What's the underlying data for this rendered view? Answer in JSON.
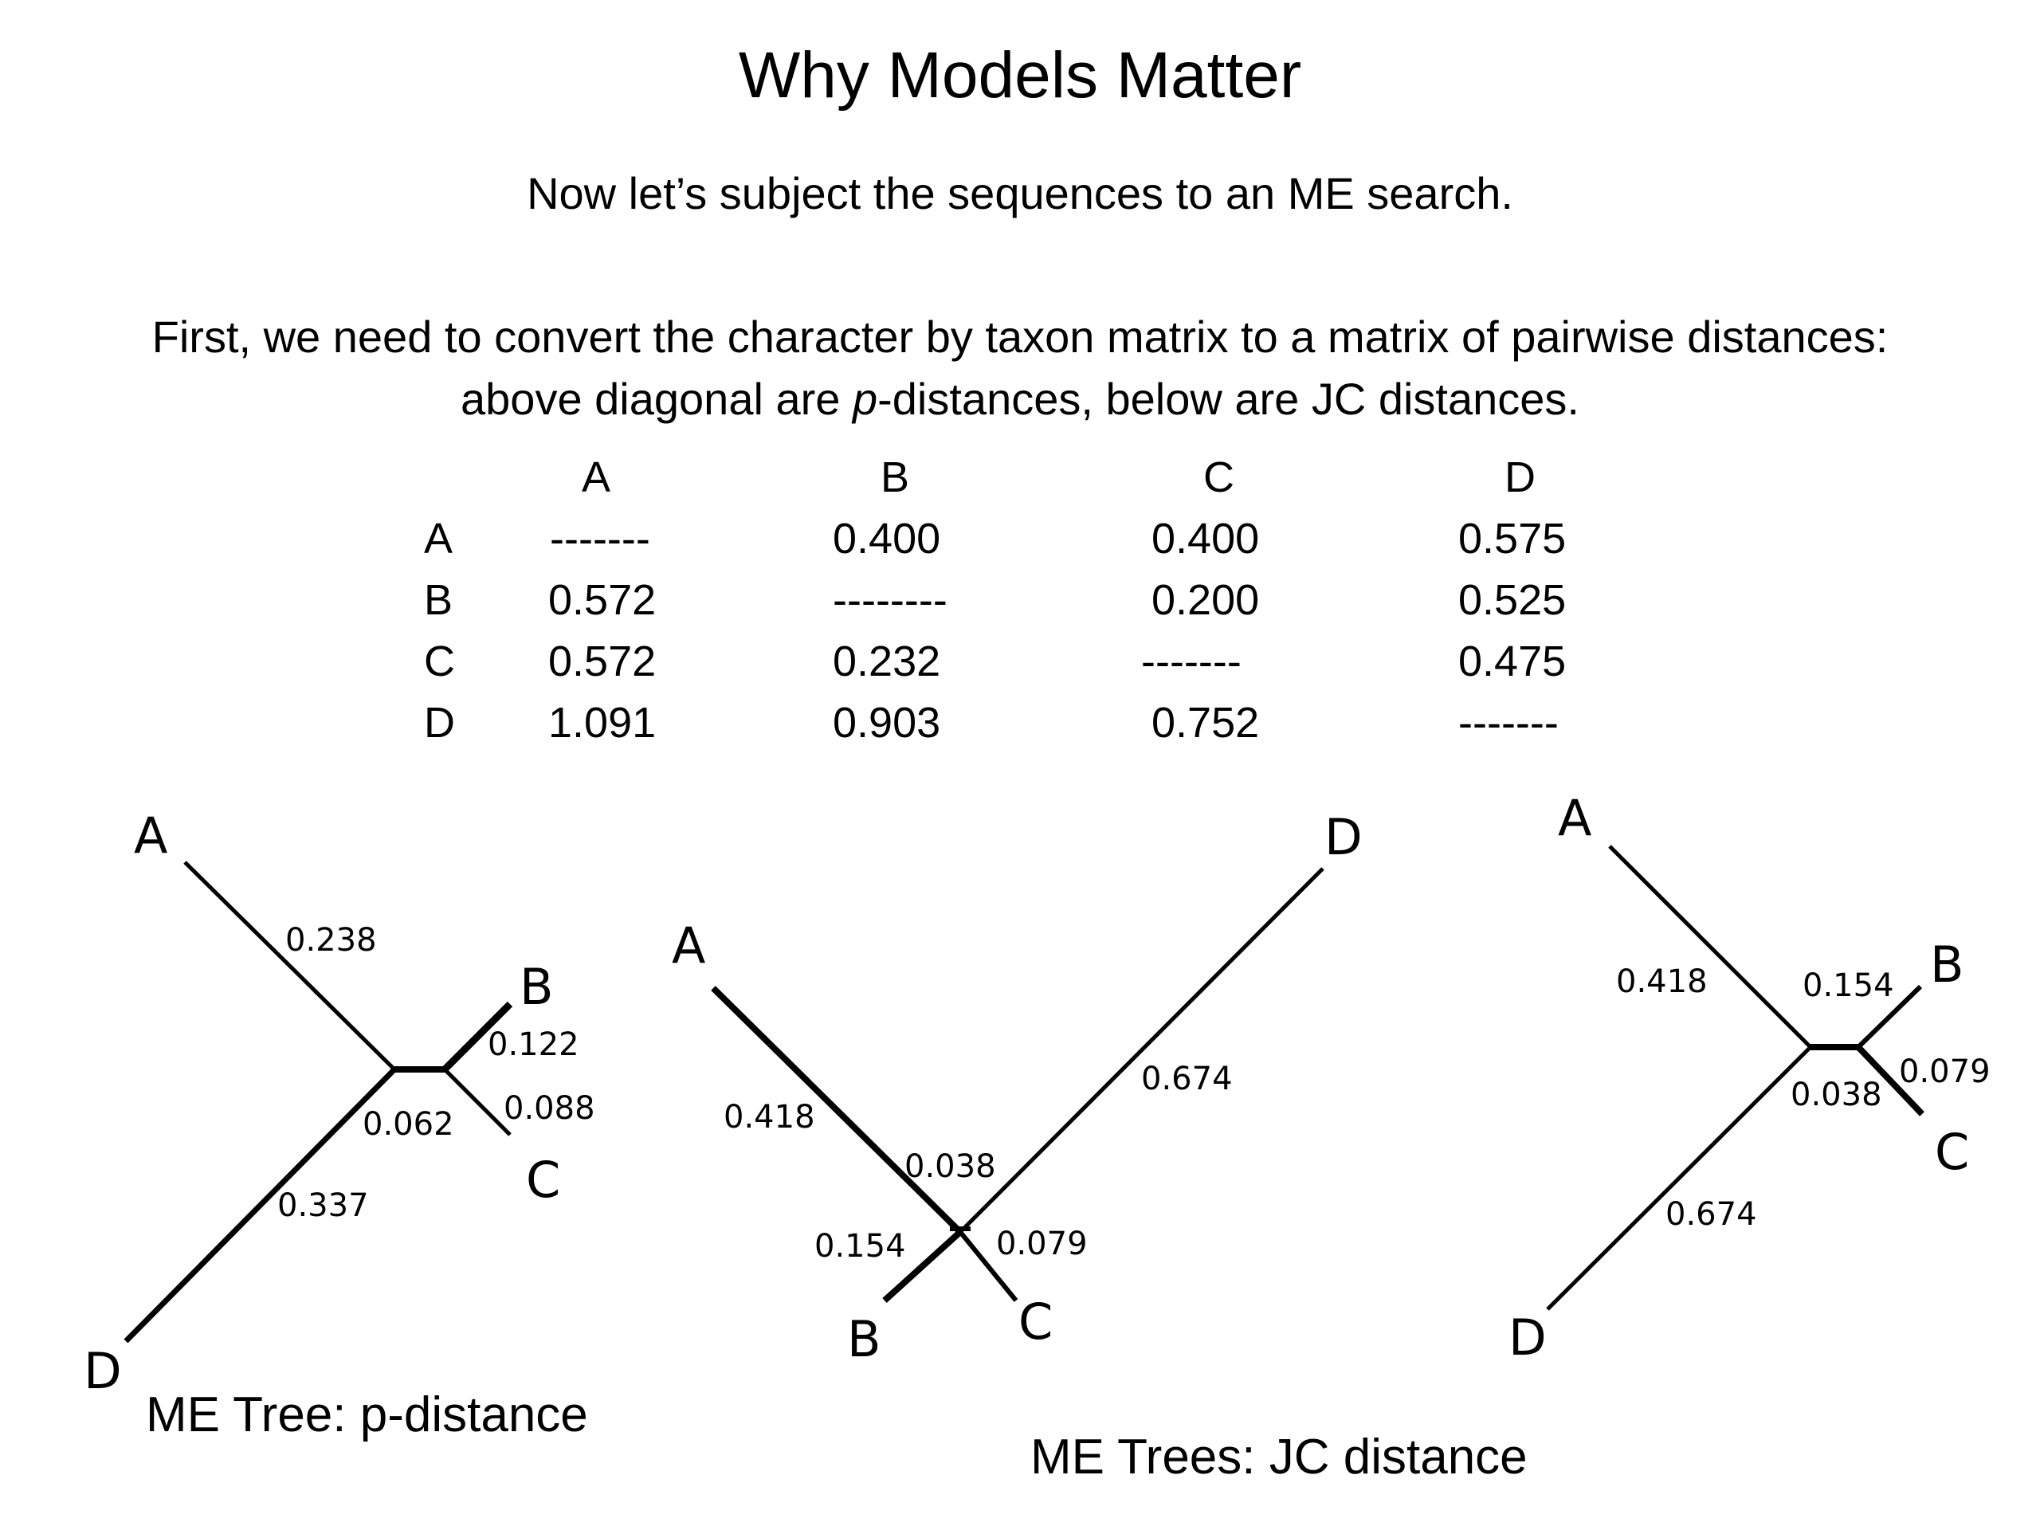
{
  "title": "Why Models Matter",
  "subtitle": "Now let’s subject the sequences to an ME search.",
  "paragraph": {
    "line1": "First, we need to convert the character by taxon matrix to a matrix of pairwise distances:",
    "line2_before": "above diagonal are ",
    "line2_italic": "p",
    "line2_after": "-distances, below are JC distances."
  },
  "matrix": {
    "columns": [
      "A",
      "B",
      "C",
      "D"
    ],
    "rows": [
      {
        "label": "A",
        "cells": [
          "-------",
          "0.400",
          "0.400",
          "0.575"
        ]
      },
      {
        "label": "B",
        "cells": [
          "0.572",
          "--------",
          "0.200",
          "0.525"
        ]
      },
      {
        "label": "C",
        "cells": [
          "0.572",
          "0.232",
          "-------",
          "0.475"
        ]
      },
      {
        "label": "D",
        "cells": [
          "1.091",
          "0.903",
          "0.752",
          "-------"
        ]
      }
    ]
  },
  "trees": {
    "p_tree": {
      "tips": {
        "A": "A",
        "B": "B",
        "C": "C",
        "D": "D"
      },
      "branches": {
        "A": "0.238",
        "B": "0.122",
        "C": "0.088",
        "D": "0.337",
        "internal": "0.062"
      },
      "caption": "ME Tree: p-distance"
    },
    "jc_tree1": {
      "tips": {
        "A": "A",
        "B": "B",
        "C": "C",
        "D": "D"
      },
      "branches": {
        "A": "0.418",
        "B": "0.154",
        "C": "0.079",
        "D": "0.674",
        "internal": "0.038"
      }
    },
    "jc_tree2": {
      "tips": {
        "A": "A",
        "B": "B",
        "C": "C",
        "D": "D"
      },
      "branches": {
        "A": "0.418",
        "B": "0.154",
        "C": "0.079",
        "D": "0.674",
        "internal": "0.038"
      }
    },
    "jc_caption": "ME Trees: JC distance"
  }
}
